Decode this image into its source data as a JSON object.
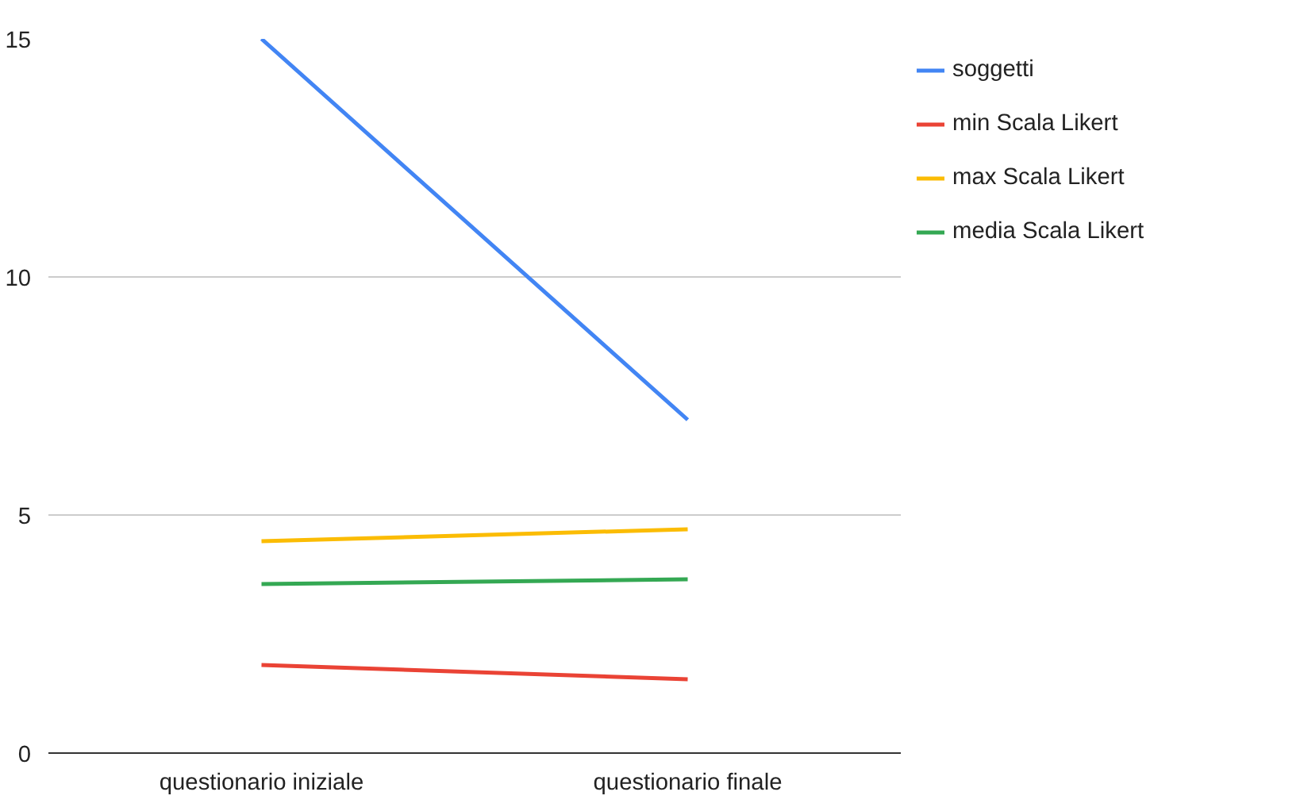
{
  "chart_data": {
    "type": "line",
    "categories": [
      "questionario iniziale",
      "questionario finale"
    ],
    "series": [
      {
        "name": "soggetti",
        "color": "#4285f4",
        "values": [
          15,
          7
        ]
      },
      {
        "name": "min Scala Likert",
        "color": "#ea4335",
        "values": [
          1.85,
          1.55
        ]
      },
      {
        "name": "max Scala Likert",
        "color": "#fbbc04",
        "values": [
          4.45,
          4.7
        ]
      },
      {
        "name": "media Scala Likert",
        "color": "#34a853",
        "values": [
          3.55,
          3.65
        ]
      }
    ],
    "ylim": [
      0,
      15
    ],
    "yticks": [
      0,
      5,
      10,
      15
    ],
    "grid": "y",
    "legend": "top right",
    "marker": "none",
    "line_style": "solid"
  }
}
